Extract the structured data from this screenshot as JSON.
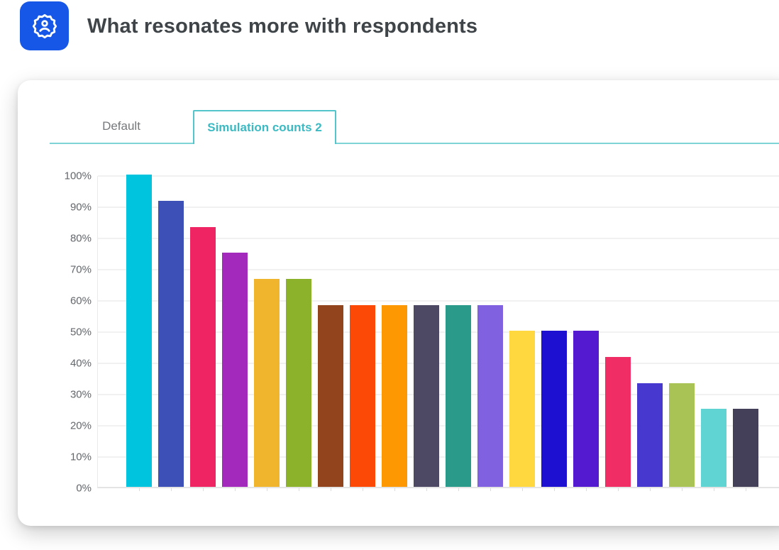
{
  "header": {
    "title": "What resonates more with respondents",
    "icon": "user-badge-icon",
    "icon_bg": "#1757e8"
  },
  "tabs": {
    "default_label": "Default",
    "active_label": "Simulation counts 2",
    "active_text_color": "#3bbac3",
    "border_color": "#54c5cb",
    "underline_color": "#7ed3d7"
  },
  "chart_data": {
    "type": "bar",
    "title": "",
    "xlabel": "",
    "ylabel": "",
    "ylim": [
      0,
      100
    ],
    "grid": true,
    "legend": false,
    "ytick_labels": [
      "100%",
      "90%",
      "80%",
      "70%",
      "60%",
      "50%",
      "40%",
      "30%",
      "20%",
      "10%",
      "0%"
    ],
    "values": [
      100,
      91.7,
      83.3,
      75,
      66.7,
      66.7,
      58.3,
      58.3,
      58.3,
      58.3,
      58.3,
      58.3,
      50,
      50,
      50,
      41.7,
      33.3,
      33.3,
      25,
      25
    ],
    "bar_colors": [
      "#00c3dd",
      "#3c50b8",
      "#ef2463",
      "#a229bb",
      "#f0b42d",
      "#8cb22c",
      "#92451d",
      "#fc4a06",
      "#fd9702",
      "#4d4965",
      "#2a9a8b",
      "#8062e0",
      "#fed83e",
      "#1d10d0",
      "#531ad0",
      "#f02d64",
      "#4739cf",
      "#aac355",
      "#60d3d3",
      "#454059"
    ]
  }
}
